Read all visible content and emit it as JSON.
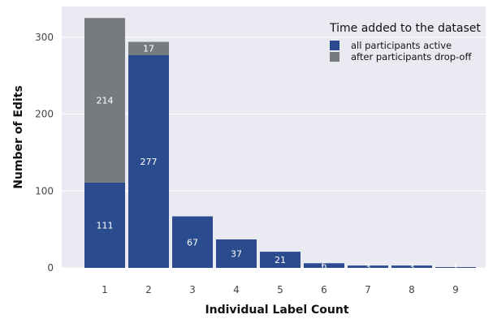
{
  "chart_data": {
    "type": "bar",
    "stacked": true,
    "categories": [
      "1",
      "2",
      "3",
      "4",
      "5",
      "6",
      "7",
      "8",
      "9"
    ],
    "series": [
      {
        "name": "all participants active",
        "color": "#2a4b8d",
        "values": [
          111,
          277,
          67,
          37,
          21,
          6,
          3,
          3,
          1
        ],
        "labels": [
          "111",
          "277",
          "67",
          "37",
          "21",
          "6",
          "3",
          "3",
          "1"
        ]
      },
      {
        "name": "after participants drop-off",
        "color": "#777b80",
        "values": [
          214,
          17,
          0,
          0,
          0,
          0,
          0,
          0,
          0
        ],
        "labels": [
          "214",
          "17",
          "",
          "",
          "",
          "",
          "",
          "",
          ""
        ]
      }
    ],
    "title": "",
    "xlabel": "Individual Label Count",
    "ylabel": "Number of Edits",
    "ylim": [
      0,
      340
    ],
    "yticks": [
      0,
      100,
      200,
      300
    ],
    "ytick_labels": [
      "0",
      "100",
      "200",
      "300"
    ],
    "grid": true,
    "background": "#eaeaf2",
    "grid_color": "#ffffff",
    "legend": {
      "title": "Time added to the dataset",
      "position": "top-right"
    }
  }
}
